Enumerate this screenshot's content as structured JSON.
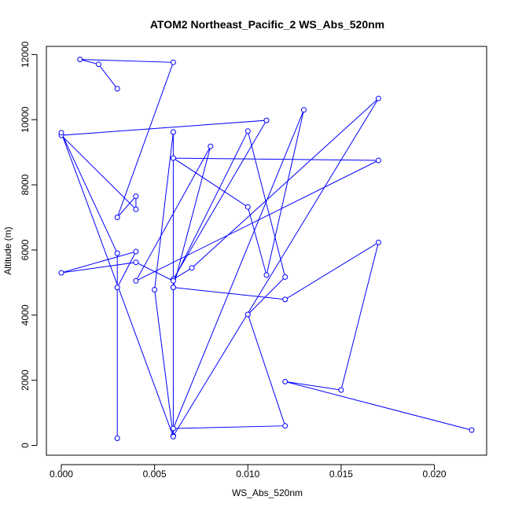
{
  "chart_data": {
    "type": "line",
    "title": "ATOM2 Northeast_Pacific_2 WS_Abs_520nm",
    "xlabel": "WS_Abs_520nm",
    "ylabel": "Altitude (m)",
    "xlim": [
      -0.0008,
      0.0228
    ],
    "ylim": [
      -300,
      12250
    ],
    "xticks": [
      0.0,
      0.005,
      0.01,
      0.015,
      0.02
    ],
    "xtick_labels": [
      "0.000",
      "0.005",
      "0.010",
      "0.015",
      "0.020"
    ],
    "yticks": [
      0,
      2000,
      4000,
      6000,
      8000,
      10000,
      12000
    ],
    "ytick_labels": [
      "0",
      "2000",
      "4000",
      "6000",
      "8000",
      "10000",
      "12000"
    ],
    "grid": false,
    "colors": {
      "series": "#0000ff",
      "axis": "#000000"
    },
    "series": [
      {
        "marker": "open-circle",
        "x": [
          0.003,
          0.002,
          0.001,
          0.006,
          0.003,
          0.004,
          0.004,
          0.0,
          0.011,
          0.006,
          0.007,
          0.017,
          0.006,
          0.006,
          0.006,
          0.005,
          0.006,
          0.0,
          0.003,
          0.003,
          0.003,
          0.004,
          0.0,
          0.004,
          0.006,
          0.01,
          0.012,
          0.01,
          0.012,
          0.006,
          0.013,
          0.011,
          0.01,
          0.006,
          0.017,
          0.004,
          0.008,
          0.006,
          0.012,
          0.017,
          0.015,
          0.012,
          0.022
        ],
        "y": [
          10950,
          11700,
          11850,
          11760,
          7000,
          7650,
          7250,
          9520,
          9980,
          5100,
          5450,
          10650,
          290,
          4850,
          9620,
          4780,
          270,
          9600,
          5900,
          220,
          4850,
          5950,
          5300,
          5620,
          5050,
          9650,
          5170,
          4020,
          600,
          520,
          10300,
          5230,
          7320,
          8820,
          8750,
          5050,
          9180,
          4850,
          4480,
          6230,
          1700,
          1960,
          470
        ]
      }
    ]
  }
}
